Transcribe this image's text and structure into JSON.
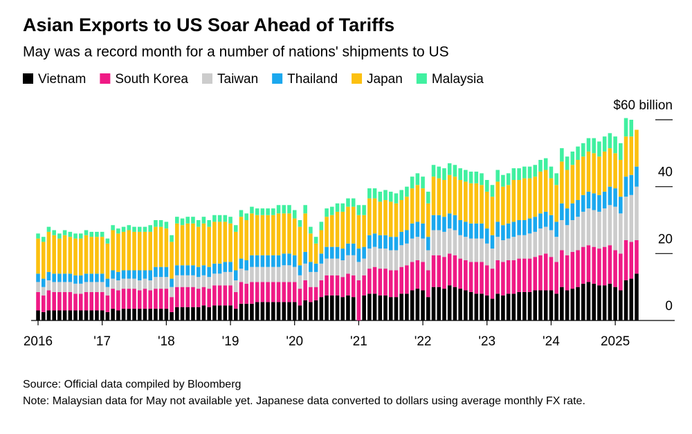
{
  "chart_data": {
    "type": "stacked_bar",
    "title": "Asian Exports to US Soar Ahead of Tariffs",
    "subtitle": "May was a record month for a number of nations' shipments to US",
    "source": "Source: Official data compiled by Bloomberg",
    "note": "Note: Malaysian data for May not available yet. Japanese data converted to dollars using average monthly FX rate.",
    "categories": [
      "2016",
      null,
      null,
      null,
      null,
      null,
      null,
      null,
      null,
      null,
      null,
      null,
      "'17",
      null,
      null,
      null,
      null,
      null,
      null,
      null,
      null,
      null,
      null,
      null,
      "'18",
      null,
      null,
      null,
      null,
      null,
      null,
      null,
      null,
      null,
      null,
      null,
      "'19",
      null,
      null,
      null,
      null,
      null,
      null,
      null,
      null,
      null,
      null,
      null,
      "'20",
      null,
      null,
      null,
      null,
      null,
      null,
      null,
      null,
      null,
      null,
      null,
      "'21",
      null,
      null,
      null,
      null,
      null,
      null,
      null,
      null,
      null,
      null,
      null,
      "'22",
      null,
      null,
      null,
      null,
      null,
      null,
      null,
      null,
      null,
      null,
      null,
      "'23",
      null,
      null,
      null,
      null,
      null,
      null,
      null,
      null,
      null,
      null,
      null,
      "'24",
      null,
      null,
      null,
      null,
      null,
      null,
      null,
      null,
      null,
      null,
      null,
      "2025",
      null,
      null,
      null,
      null
    ],
    "ylim": [
      0,
      60
    ],
    "yticks": [
      0,
      20,
      40,
      {
        "value": 60,
        "label": "$60 billion"
      }
    ],
    "legend": "top-left",
    "series": [
      {
        "name": "Vietnam",
        "color": "#000000",
        "values": [
          3,
          2.5,
          3,
          3,
          3,
          3,
          3,
          3,
          3,
          3,
          3,
          3,
          3,
          2.5,
          3.5,
          3,
          3.5,
          3.5,
          3.5,
          3.5,
          3.5,
          3.5,
          3.5,
          3.5,
          3.5,
          2.5,
          4,
          4,
          4,
          4,
          4,
          4.5,
          4,
          4.5,
          4.5,
          4.5,
          4.5,
          3.5,
          5,
          5,
          5,
          5.5,
          5.5,
          5.5,
          5.5,
          5.5,
          5.5,
          5.5,
          5.5,
          4.5,
          6,
          5.5,
          6,
          7,
          7.5,
          7.5,
          7.5,
          7,
          7.5,
          7,
          null,
          7.5,
          8,
          8,
          7.5,
          7.5,
          7,
          7,
          8,
          8,
          9,
          9.5,
          9,
          7,
          10,
          10,
          9.5,
          10.5,
          10,
          9.5,
          9,
          8.5,
          8,
          8,
          7.5,
          6.5,
          8,
          7.5,
          8,
          8,
          8.5,
          8.5,
          8.5,
          9,
          9,
          9,
          9,
          8,
          10,
          9,
          9.5,
          10,
          11,
          11.5,
          11,
          10.5,
          10.5,
          11,
          10,
          9,
          12,
          12.5,
          14
        ]
      },
      {
        "name": "South Korea",
        "color": "#ef1a85",
        "values": [
          5.5,
          5,
          6,
          5.5,
          5.5,
          5.5,
          5.5,
          5,
          5,
          5.5,
          5.5,
          5.5,
          5.5,
          5,
          6,
          6,
          6,
          6,
          6,
          5.5,
          6,
          5.5,
          6,
          6,
          6,
          4.5,
          6,
          6,
          6,
          6,
          5.5,
          5.5,
          5.5,
          6,
          6,
          6,
          6,
          5,
          6.5,
          6,
          6.5,
          6,
          6,
          6,
          6,
          6,
          6,
          6,
          6,
          5,
          6,
          4.5,
          4,
          5,
          6,
          6,
          6,
          6,
          6.5,
          6.5,
          12,
          6,
          7.5,
          8,
          8,
          8,
          8,
          8,
          8,
          8.5,
          8.5,
          8.5,
          8.5,
          8,
          9.5,
          9.5,
          9.5,
          9.5,
          9.5,
          9,
          9,
          9,
          9.5,
          9.5,
          9,
          9,
          10,
          10,
          10,
          10,
          10,
          10,
          10,
          10,
          10.5,
          11,
          10,
          9.5,
          11,
          10.5,
          11,
          11,
          11,
          11,
          11,
          11,
          11.5,
          11.5,
          11,
          11,
          12,
          11,
          10
        ]
      },
      {
        "name": "Taiwan",
        "color": "#cccccc",
        "values": [
          3,
          2.5,
          3,
          3,
          3,
          3,
          3,
          3,
          3,
          3,
          3,
          3,
          3,
          2.5,
          3,
          3,
          3,
          3,
          3,
          3,
          3,
          3,
          3.5,
          3.5,
          3.5,
          3,
          3.5,
          3.5,
          3.5,
          3.5,
          3.5,
          3.5,
          3.5,
          3.5,
          3.5,
          4,
          4,
          3.5,
          4,
          4,
          4.5,
          4.5,
          4.5,
          4.5,
          4.5,
          4.5,
          5,
          5,
          4.5,
          4,
          5,
          4.5,
          4.5,
          5,
          5,
          5,
          5,
          5,
          5.5,
          6,
          5.5,
          5,
          6,
          6,
          6,
          6,
          6,
          6,
          6.5,
          6.5,
          7,
          7,
          7,
          6,
          7.5,
          7.5,
          7.5,
          7.5,
          7.5,
          7,
          7,
          7,
          7,
          7,
          6.5,
          6,
          7,
          6.5,
          6.5,
          7,
          7,
          7,
          7.5,
          7.5,
          8,
          8,
          8,
          7.5,
          9,
          9,
          9.5,
          10,
          10.5,
          11,
          11,
          11,
          11.5,
          12,
          13,
          12,
          13,
          14,
          16
        ]
      },
      {
        "name": "Thailand",
        "color": "#1ba8ee",
        "values": [
          2.5,
          2.5,
          2.5,
          2.5,
          2.5,
          2.5,
          2.5,
          2.5,
          2.5,
          2.5,
          2.5,
          2.5,
          2.5,
          2.5,
          2.5,
          2.5,
          2.5,
          2.5,
          2.5,
          3,
          2.5,
          3,
          3,
          3,
          3,
          2.5,
          3,
          3,
          3,
          3,
          3,
          3,
          3,
          3,
          3,
          3,
          3,
          3,
          3,
          3,
          3.5,
          3.5,
          3.5,
          3.5,
          3.5,
          3.5,
          3.5,
          3.5,
          3.5,
          3,
          3.5,
          3,
          2.5,
          3,
          3.5,
          3.5,
          3.5,
          3.5,
          3.5,
          3.5,
          4,
          3.5,
          4,
          4,
          4,
          4,
          4,
          4,
          4,
          4,
          4.5,
          4.5,
          4.5,
          4,
          4.5,
          4.5,
          4.5,
          4.5,
          4.5,
          4.5,
          4.5,
          4.5,
          4.5,
          4.5,
          4.5,
          4,
          4.5,
          4.5,
          4.5,
          4.5,
          4.5,
          4.5,
          4.5,
          4.5,
          4.5,
          4.5,
          4.5,
          4.5,
          5,
          5,
          5,
          5,
          5,
          5,
          5,
          5,
          5,
          5.5,
          5.5,
          5,
          6,
          6,
          6
        ]
      },
      {
        "name": "Japan",
        "color": "#fcc010",
        "values": [
          10.5,
          11,
          12,
          11.5,
          10.5,
          11.5,
          11,
          11,
          11,
          11.5,
          11,
          11,
          11,
          10.5,
          12,
          11.5,
          11.5,
          12,
          11.5,
          11.5,
          11.5,
          11.5,
          12,
          12,
          11.5,
          11,
          12.5,
          12,
          12.5,
          12.5,
          12,
          12.5,
          12,
          12.5,
          12.5,
          12,
          11.5,
          11.5,
          12.5,
          12,
          12.5,
          12,
          12,
          12,
          12,
          12.5,
          12,
          12,
          11,
          11.5,
          11.5,
          8.5,
          6,
          7,
          9,
          9.5,
          10.5,
          11,
          11,
          11,
          10,
          9.5,
          11,
          10.5,
          10,
          10.5,
          10.5,
          10,
          9.5,
          10,
          10.5,
          11,
          10.5,
          10,
          11.5,
          11,
          11,
          11.5,
          11.5,
          12,
          12,
          12,
          12,
          11.5,
          11,
          11.5,
          12,
          11.5,
          11.5,
          12.5,
          12,
          12.5,
          12,
          12,
          12.5,
          12.5,
          11,
          11,
          12.5,
          11.5,
          11.5,
          12,
          11.5,
          12,
          12,
          11.5,
          12,
          11.5,
          10.5,
          11,
          12,
          11.5,
          11
        ]
      },
      {
        "name": "Malaysia",
        "color": "#40f0a0",
        "values": [
          1.5,
          1.5,
          1.5,
          1.5,
          1.5,
          1.5,
          1.5,
          1.5,
          1.5,
          1.5,
          1.5,
          1.5,
          1.5,
          1.5,
          1.5,
          1.5,
          1.5,
          1.5,
          1.5,
          1.5,
          1.5,
          2,
          2,
          2,
          2,
          2,
          2,
          2,
          2,
          2,
          2,
          2,
          2,
          2,
          2,
          2,
          2,
          2,
          2,
          2,
          2,
          2,
          2,
          2,
          2,
          2.5,
          2.5,
          2.5,
          2.5,
          2,
          2.5,
          2,
          2,
          2.5,
          2.5,
          2.5,
          2.5,
          2.5,
          2.5,
          2.5,
          3,
          3,
          3,
          3,
          3,
          3,
          3,
          3,
          3,
          3,
          3.5,
          3.5,
          3.5,
          3.5,
          3.5,
          3.5,
          3.5,
          3.5,
          3.5,
          3.5,
          3.5,
          3.5,
          3.5,
          3.5,
          3.5,
          3.5,
          3.5,
          3.5,
          3.5,
          3.5,
          3.5,
          3.5,
          3.5,
          3.5,
          3.5,
          3.5,
          3.5,
          3.5,
          4,
          4,
          4,
          4,
          4,
          4,
          4.5,
          4.5,
          4.5,
          4.5,
          5,
          5,
          5.5,
          5,
          null
        ]
      }
    ]
  }
}
